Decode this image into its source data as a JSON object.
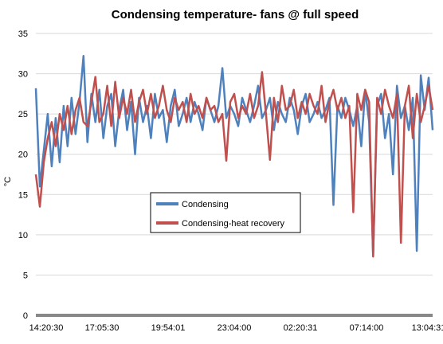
{
  "chart_data": {
    "type": "line",
    "title": "Condensing temperature- fans @ full speed",
    "xlabel": "",
    "ylabel": "°C",
    "ylim": [
      0,
      35
    ],
    "yticks": [
      0,
      5,
      10,
      15,
      20,
      25,
      30,
      35
    ],
    "xticks": [
      "14:20:30",
      "17:05:30",
      "19:54:01",
      "23:04:00",
      "02:20:31",
      "07:14:00",
      "13:04:31"
    ],
    "grid": "horizontal",
    "legend_position": "center-left",
    "x": [
      0,
      1,
      2,
      3,
      4,
      5,
      6,
      7,
      8,
      9,
      10,
      11,
      12,
      13,
      14,
      15,
      16,
      17,
      18,
      19,
      20,
      21,
      22,
      23,
      24,
      25,
      26,
      27,
      28,
      29,
      30,
      31,
      32,
      33,
      34,
      35,
      36,
      37,
      38,
      39,
      40,
      41,
      42,
      43,
      44,
      45,
      46,
      47,
      48,
      49,
      50,
      51,
      52,
      53,
      54,
      55,
      56,
      57,
      58,
      59,
      60,
      61,
      62,
      63,
      64,
      65,
      66,
      67,
      68,
      69,
      70,
      71,
      72,
      73,
      74,
      75,
      76,
      77,
      78,
      79,
      80,
      81,
      82,
      83,
      84,
      85,
      86,
      87,
      88,
      89,
      90,
      91,
      92,
      93,
      94,
      95,
      96,
      97,
      98,
      99,
      100
    ],
    "series": [
      {
        "name": "Condensing",
        "color": "#4F81BD",
        "values": [
          28.2,
          16.0,
          20.5,
          25.0,
          18.5,
          24.5,
          19.0,
          26.0,
          21.0,
          27.0,
          22.5,
          26.5,
          32.2,
          21.5,
          27.5,
          24.0,
          28.0,
          22.0,
          26.0,
          27.5,
          21.0,
          25.5,
          28.0,
          23.0,
          26.5,
          20.0,
          27.0,
          24.0,
          26.0,
          22.0,
          27.5,
          24.5,
          25.5,
          21.5,
          26.0,
          28.0,
          23.5,
          25.0,
          27.0,
          24.0,
          26.5,
          25.0,
          23.0,
          27.0,
          25.5,
          24.0,
          26.0,
          30.7,
          24.5,
          26.0,
          25.0,
          23.5,
          27.0,
          25.5,
          24.0,
          26.0,
          28.5,
          24.5,
          25.5,
          27.0,
          23.0,
          26.5,
          25.0,
          24.0,
          27.0,
          25.5,
          22.5,
          26.0,
          27.5,
          24.0,
          25.0,
          26.5,
          24.5,
          25.5,
          27.0,
          13.7,
          26.0,
          24.5,
          27.0,
          25.5,
          23.5,
          26.0,
          21.0,
          28.0,
          24.0,
          7.4,
          26.0,
          27.5,
          22.0,
          25.0,
          17.5,
          28.5,
          24.5,
          26.0,
          23.0,
          27.0,
          8.0,
          29.8,
          25.5,
          29.5,
          23.0
        ]
      },
      {
        "name": "Condensing-heat recovery",
        "color": "#C0504D",
        "values": [
          17.5,
          13.5,
          19.0,
          22.0,
          24.0,
          21.0,
          25.0,
          23.0,
          26.0,
          22.5,
          25.5,
          27.0,
          24.0,
          23.5,
          26.5,
          29.6,
          24.0,
          25.0,
          28.5,
          23.5,
          29.0,
          24.5,
          27.0,
          25.0,
          28.0,
          24.0,
          26.5,
          28.0,
          25.0,
          27.5,
          24.5,
          26.0,
          28.5,
          25.5,
          24.0,
          27.0,
          25.5,
          26.5,
          24.0,
          27.5,
          25.0,
          26.0,
          24.5,
          27.0,
          25.5,
          26.0,
          24.0,
          25.0,
          19.2,
          26.5,
          27.5,
          24.5,
          26.0,
          25.0,
          27.5,
          24.5,
          26.0,
          30.2,
          25.0,
          19.3,
          27.0,
          24.0,
          28.5,
          25.5,
          26.0,
          28.0,
          24.5,
          26.5,
          25.0,
          27.5,
          26.0,
          25.0,
          28.5,
          24.0,
          26.5,
          28.0,
          25.5,
          27.0,
          24.5,
          26.0,
          12.8,
          27.5,
          25.5,
          28.0,
          26.5,
          7.3,
          27.0,
          25.0,
          28.0,
          26.0,
          24.5,
          27.5,
          9.0,
          26.0,
          28.5,
          22.0,
          27.5,
          24.0,
          26.0,
          28.5,
          25.5
        ]
      }
    ]
  }
}
